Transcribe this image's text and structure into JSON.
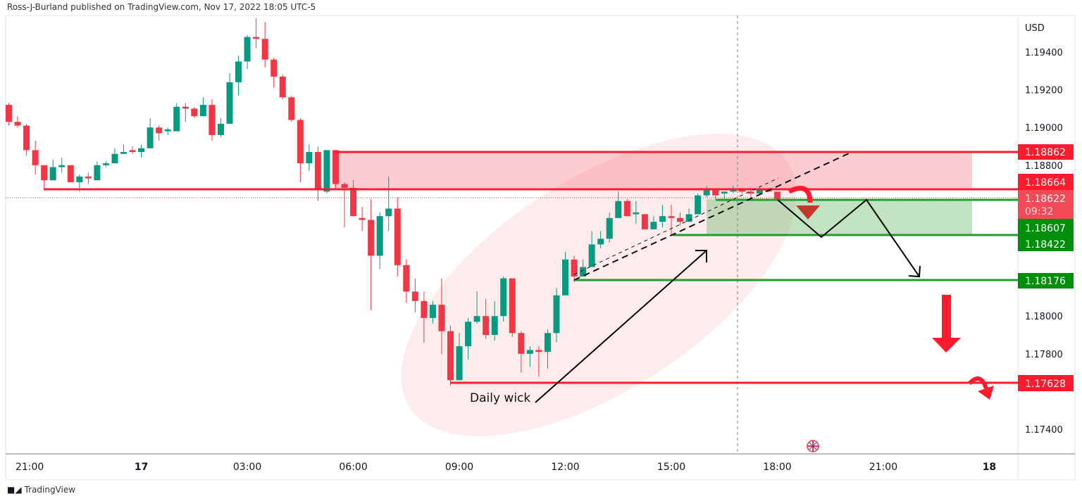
{
  "header": {
    "publisher_text": "Ross-J-Burland published on TradingView.com, Nov 17, 2022 18:05 UTC-5"
  },
  "footer": {
    "brand": "TradingView"
  },
  "chart_data": {
    "type": "candlestick",
    "currency": "USD",
    "interval_minutes": 15,
    "start": "2022-11-16 20:15",
    "up_color": "#089981",
    "down_color": "#f23645",
    "ohlc": [
      [
        1.1912,
        1.1913,
        1.1901,
        1.1903
      ],
      [
        1.1903,
        1.1906,
        1.19,
        1.1901
      ],
      [
        1.1901,
        1.1902,
        1.1885,
        1.1888
      ],
      [
        1.1888,
        1.1893,
        1.1875,
        1.188
      ],
      [
        1.188,
        1.188,
        1.1868,
        1.1872
      ],
      [
        1.1872,
        1.1883,
        1.1872,
        1.1879
      ],
      [
        1.1879,
        1.1884,
        1.1876,
        1.188
      ],
      [
        1.188,
        1.188,
        1.1871,
        1.1871
      ],
      [
        1.1871,
        1.1875,
        1.1866,
        1.1874
      ],
      [
        1.1874,
        1.1876,
        1.187,
        1.1873
      ],
      [
        1.1872,
        1.1882,
        1.1872,
        1.188
      ],
      [
        1.188,
        1.1882,
        1.1879,
        1.1881
      ],
      [
        1.1881,
        1.1889,
        1.1881,
        1.1886
      ],
      [
        1.1886,
        1.1891,
        1.1886,
        1.1887
      ],
      [
        1.1888,
        1.189,
        1.1886,
        1.1887
      ],
      [
        1.1887,
        1.1891,
        1.1884,
        1.1889
      ],
      [
        1.1889,
        1.1905,
        1.1889,
        1.19
      ],
      [
        1.19,
        1.1901,
        1.1893,
        1.1897
      ],
      [
        1.1898,
        1.19,
        1.1896,
        1.1899
      ],
      [
        1.1898,
        1.1913,
        1.1898,
        1.1911
      ],
      [
        1.1911,
        1.1913,
        1.1903,
        1.191
      ],
      [
        1.191,
        1.1911,
        1.1905,
        1.1906
      ],
      [
        1.1906,
        1.1916,
        1.1906,
        1.1912
      ],
      [
        1.1912,
        1.1915,
        1.1893,
        1.1896
      ],
      [
        1.1896,
        1.1905,
        1.1895,
        1.1902
      ],
      [
        1.1902,
        1.1929,
        1.1902,
        1.1924
      ],
      [
        1.1924,
        1.1938,
        1.1917,
        1.1935
      ],
      [
        1.1935,
        1.1949,
        1.1931,
        1.1948
      ],
      [
        1.1948,
        1.1958,
        1.1942,
        1.1947
      ],
      [
        1.1947,
        1.1956,
        1.1932,
        1.1936
      ],
      [
        1.1936,
        1.1937,
        1.1921,
        1.1927
      ],
      [
        1.1927,
        1.1928,
        1.1915,
        1.1916
      ],
      [
        1.1916,
        1.1917,
        1.1903,
        1.1904
      ],
      [
        1.1904,
        1.1905,
        1.1871,
        1.1881
      ],
      [
        1.1881,
        1.1891,
        1.1877,
        1.1887
      ],
      [
        1.1887,
        1.189,
        1.1861,
        1.1867
      ],
      [
        1.1866,
        1.1888,
        1.1865,
        1.1888
      ],
      [
        1.1888,
        1.1888,
        1.1868,
        1.187
      ],
      [
        1.187,
        1.1871,
        1.1847,
        1.1868
      ],
      [
        1.1868,
        1.1872,
        1.1853,
        1.1853
      ],
      [
        1.1852,
        1.1858,
        1.1845,
        1.1851
      ],
      [
        1.1851,
        1.1862,
        1.1803,
        1.1832
      ],
      [
        1.1832,
        1.1855,
        1.1825,
        1.1853
      ],
      [
        1.1853,
        1.1874,
        1.1845,
        1.1857
      ],
      [
        1.1857,
        1.1863,
        1.1821,
        1.1827
      ],
      [
        1.1827,
        1.183,
        1.1807,
        1.1813
      ],
      [
        1.1813,
        1.182,
        1.1802,
        1.1808
      ],
      [
        1.1808,
        1.1813,
        1.1786,
        1.1799
      ],
      [
        1.1799,
        1.1808,
        1.1796,
        1.1806
      ],
      [
        1.1806,
        1.182,
        1.178,
        1.1792
      ],
      [
        1.1792,
        1.1795,
        1.1763,
        1.1766
      ],
      [
        1.1766,
        1.1791,
        1.1766,
        1.1784
      ],
      [
        1.1784,
        1.1799,
        1.1777,
        1.1797
      ],
      [
        1.1797,
        1.1813,
        1.1796,
        1.18
      ],
      [
        1.18,
        1.1809,
        1.1788,
        1.179
      ],
      [
        1.179,
        1.1808,
        1.1787,
        1.18
      ],
      [
        1.18,
        1.1821,
        1.1797,
        1.182
      ],
      [
        1.182,
        1.182,
        1.1789,
        1.1791
      ],
      [
        1.1791,
        1.1792,
        1.177,
        1.178
      ],
      [
        1.178,
        1.1784,
        1.1773,
        1.1782
      ],
      [
        1.1782,
        1.1784,
        1.1768,
        1.1781
      ],
      [
        1.1781,
        1.1793,
        1.1772,
        1.1791
      ],
      [
        1.1791,
        1.1815,
        1.1786,
        1.1811
      ],
      [
        1.1811,
        1.1834,
        1.1811,
        1.183
      ],
      [
        1.183,
        1.1832,
        1.1818,
        1.1821
      ],
      [
        1.1821,
        1.183,
        1.1821,
        1.1826
      ],
      [
        1.1826,
        1.1845,
        1.1826,
        1.1838
      ],
      [
        1.1838,
        1.1845,
        1.1836,
        1.1841
      ],
      [
        1.1841,
        1.1855,
        1.1839,
        1.1852
      ],
      [
        1.1852,
        1.1866,
        1.1852,
        1.1861
      ],
      [
        1.1861,
        1.1862,
        1.1853,
        1.1853
      ],
      [
        1.1854,
        1.1861,
        1.1849,
        1.1855
      ],
      [
        1.1854,
        1.1854,
        1.1846,
        1.1846
      ],
      [
        1.1846,
        1.1853,
        1.1846,
        1.185
      ],
      [
        1.185,
        1.1859,
        1.1847,
        1.1853
      ],
      [
        1.1853,
        1.1859,
        1.1843,
        1.1852
      ],
      [
        1.1852,
        1.1855,
        1.1848,
        1.185
      ],
      [
        1.185,
        1.1857,
        1.185,
        1.1854
      ],
      [
        1.1854,
        1.1865,
        1.1854,
        1.1864
      ],
      [
        1.1864,
        1.1869,
        1.1863,
        1.1867
      ],
      [
        1.1867,
        1.1867,
        1.1862,
        1.1864
      ],
      [
        1.1865,
        1.1866,
        1.1862,
        1.1866
      ],
      [
        1.1866,
        1.1869,
        1.1865,
        1.1867
      ],
      [
        1.1867,
        1.1868,
        1.1865,
        1.1866
      ],
      [
        1.1866,
        1.1867,
        1.1862,
        1.1865
      ],
      [
        1.1865,
        1.1868,
        1.1865,
        1.1867
      ],
      [
        1.1867,
        1.1867,
        1.1866,
        1.1866
      ],
      [
        1.1866,
        1.1866,
        1.18622,
        1.18622
      ]
    ],
    "price_ticks": [
      "1.19400",
      "1.19200",
      "1.19000",
      "1.18800",
      "1.18000",
      "1.17800",
      "1.17400"
    ],
    "time_ticks": [
      "21:00",
      "17",
      "03:00",
      "06:00",
      "09:00",
      "12:00",
      "15:00",
      "18:00",
      "21:00",
      "18"
    ],
    "current_price": {
      "value": "1.18622",
      "countdown": "09:32",
      "color": "#f23645"
    },
    "levels": [
      {
        "value": "1.18862",
        "color": "#ff1a2e"
      },
      {
        "value": "1.18664",
        "color": "#ff1a2e"
      },
      {
        "value": "1.18607",
        "color": "#008f0a"
      },
      {
        "value": "1.18422",
        "color": "#008f0a"
      },
      {
        "value": "1.18176",
        "color": "#008f0a"
      },
      {
        "value": "1.17628",
        "color": "#ff1a2e"
      }
    ],
    "annotations": {
      "daily_wick": "Daily wick"
    }
  }
}
